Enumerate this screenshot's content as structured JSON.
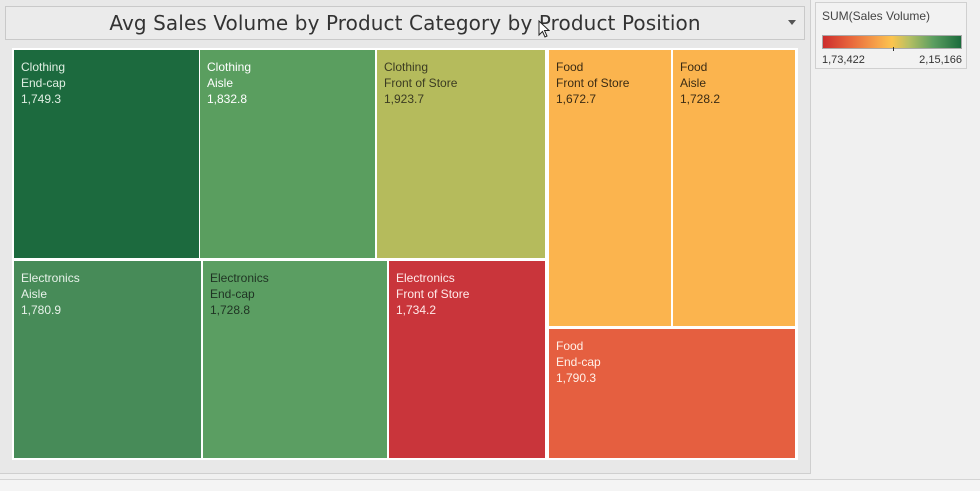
{
  "chart_data": {
    "type": "treemap",
    "title": "Avg Sales Volume by Product Category by Product Position",
    "measure": "Avg Sales Volume",
    "color_legend": {
      "title": "SUM(Sales Volume)",
      "min_label": "1,73,422",
      "max_label": "2,15,166",
      "min_color": "#cc2d2d",
      "mid_color": "#fcc44e",
      "max_color": "#1b6b3c"
    },
    "tiles": [
      {
        "category": "Clothing",
        "position": "End-cap",
        "value": 1749.3,
        "value_label": "1,749.3",
        "color": "#1c6a3e",
        "text_color": "#dfeee2"
      },
      {
        "category": "Clothing",
        "position": "Aisle",
        "value": 1832.8,
        "value_label": "1,832.8",
        "color": "#5a9e5f",
        "text_color": "#ffffff"
      },
      {
        "category": "Clothing",
        "position": "Front of Store",
        "value": 1923.7,
        "value_label": "1,923.7",
        "color": "#b5bb5c",
        "text_color": "#3b3b22"
      },
      {
        "category": "Electronics",
        "position": "Aisle",
        "value": 1780.9,
        "value_label": "1,780.9",
        "color": "#478b58",
        "text_color": "#e8f2ea"
      },
      {
        "category": "Electronics",
        "position": "End-cap",
        "value": 1728.8,
        "value_label": "1,728.8",
        "color": "#5b9e62",
        "text_color": "#1f3323"
      },
      {
        "category": "Electronics",
        "position": "Front of Store",
        "value": 1734.2,
        "value_label": "1,734.2",
        "color": "#c9353b",
        "text_color": "#ffe9e9"
      },
      {
        "category": "Food",
        "position": "Front of Store",
        "value": 1672.7,
        "value_label": "1,672.7",
        "color": "#fbb44e",
        "text_color": "#3a2b14"
      },
      {
        "category": "Food",
        "position": "Aisle",
        "value": 1728.2,
        "value_label": "1,728.2",
        "color": "#fbb44e",
        "text_color": "#3a2b14"
      },
      {
        "category": "Food",
        "position": "End-cap",
        "value": 1790.3,
        "value_label": "1,790.3",
        "color": "#e55f40",
        "text_color": "#fff1e8"
      }
    ]
  }
}
